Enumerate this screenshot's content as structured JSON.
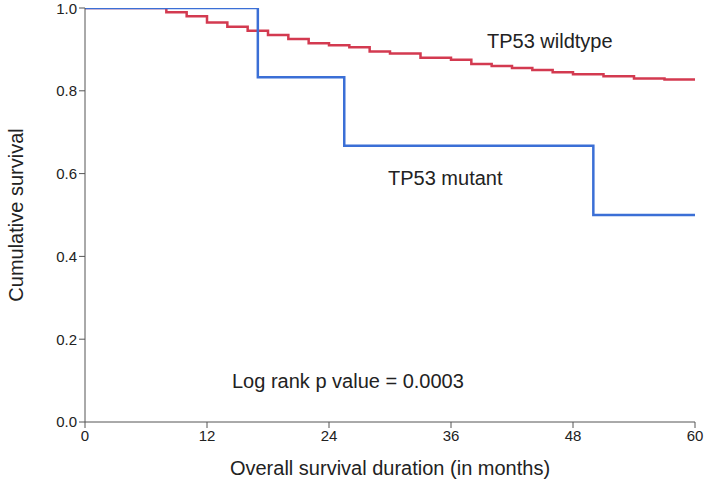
{
  "chart_data": {
    "type": "line",
    "x_label": "Overall survival duration (in months)",
    "y_label": "Cumulative survival",
    "xlim": [
      0,
      60
    ],
    "xticks": [
      0,
      12,
      24,
      36,
      48,
      60
    ],
    "ylim": [
      0,
      1
    ],
    "yticks": [
      {
        "value": 0,
        "label": "0.0"
      },
      {
        "value": 0.2,
        "label": "0.2"
      },
      {
        "value": 0.4,
        "label": "0.4"
      },
      {
        "value": 0.6,
        "label": "0.6"
      },
      {
        "value": 0.8,
        "label": "0.8"
      },
      {
        "value": 1,
        "label": "1.0"
      }
    ],
    "grid": false,
    "line_style": "step",
    "series": [
      {
        "name": "TP53 wildtype",
        "color": "#d33a50",
        "x": [
          0,
          5,
          8,
          10,
          12,
          14,
          16,
          18,
          20,
          22,
          24,
          26,
          28,
          30,
          33,
          36,
          38,
          40,
          42,
          44,
          46,
          48,
          51,
          54,
          57,
          60
        ],
        "values": [
          1.0,
          1.0,
          0.99,
          0.98,
          0.965,
          0.955,
          0.945,
          0.935,
          0.925,
          0.915,
          0.91,
          0.905,
          0.895,
          0.89,
          0.88,
          0.875,
          0.865,
          0.86,
          0.855,
          0.85,
          0.845,
          0.84,
          0.835,
          0.83,
          0.827,
          0.825
        ]
      },
      {
        "name": "TP53 mutant",
        "color": "#3b6fd6",
        "x": [
          0,
          17,
          25.5,
          50,
          60
        ],
        "values": [
          1.0,
          0.833,
          0.667,
          0.5,
          0.5
        ]
      }
    ],
    "annotations": [
      {
        "text": "Log rank p value = 0.0003"
      }
    ]
  }
}
